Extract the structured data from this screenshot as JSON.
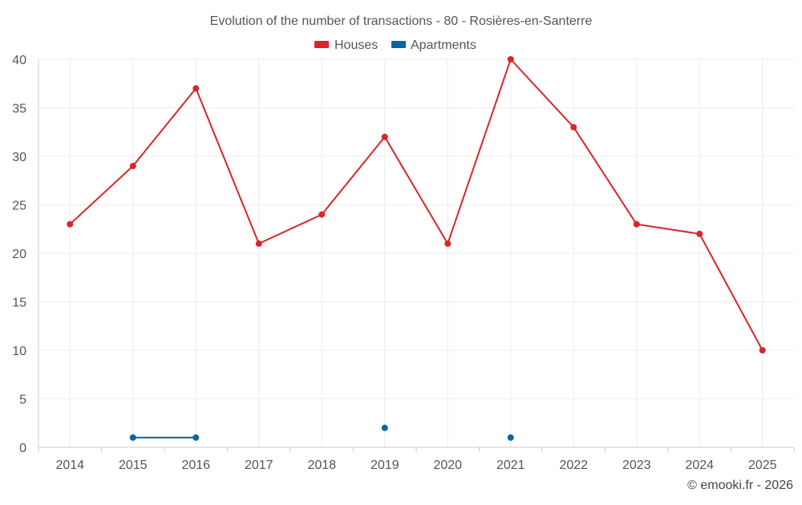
{
  "chart_data": {
    "type": "line",
    "title": "Evolution of the number of transactions - 80 - Rosières-en-Santerre",
    "categories": [
      "2014",
      "2015",
      "2016",
      "2017",
      "2018",
      "2019",
      "2020",
      "2021",
      "2022",
      "2023",
      "2024",
      "2025"
    ],
    "ylim": [
      0,
      40
    ],
    "yticks": [
      0,
      5,
      10,
      15,
      20,
      25,
      30,
      35,
      40
    ],
    "grid": true,
    "legend_position": "top-center",
    "series": [
      {
        "name": "Houses",
        "color": "#d7262b",
        "values": [
          23,
          29,
          37,
          21,
          24,
          32,
          21,
          40,
          33,
          23,
          22,
          10
        ]
      },
      {
        "name": "Apartments",
        "color": "#0b679b",
        "values": [
          null,
          1,
          1,
          null,
          null,
          2,
          null,
          1,
          null,
          null,
          null,
          null
        ]
      }
    ],
    "credit": "© emooki.fr - 2026"
  }
}
